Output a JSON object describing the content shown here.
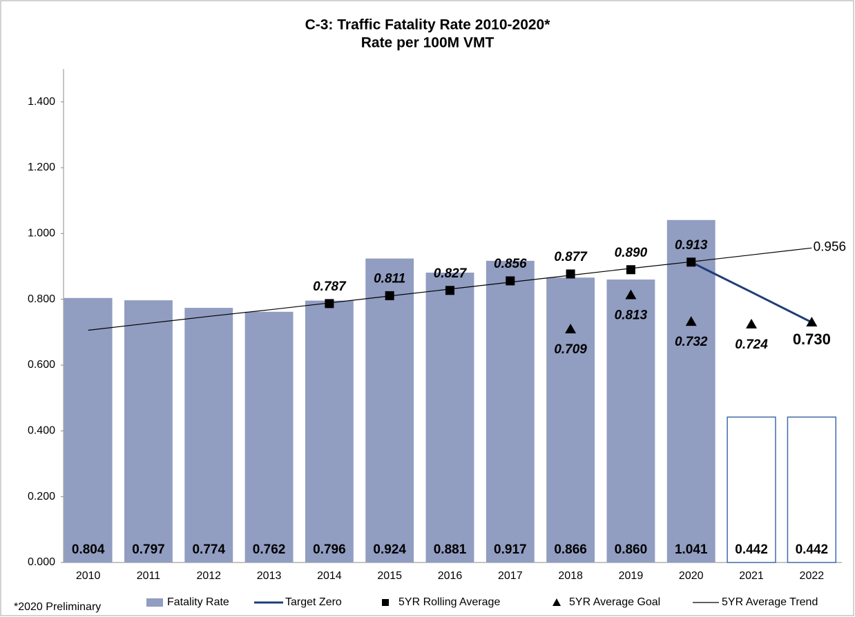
{
  "chart_data": {
    "type": "bar",
    "title": "C-3: Traffic Fatality Rate 2010-2020*",
    "subtitle": "Rate per 100M VMT",
    "note": "*2020 Preliminary",
    "categories": [
      "2010",
      "2011",
      "2012",
      "2013",
      "2014",
      "2015",
      "2016",
      "2017",
      "2018",
      "2019",
      "2020",
      "2021",
      "2022"
    ],
    "ylim": [
      0,
      1.5
    ],
    "yticks": [
      {
        "value": 0,
        "label": "0.000"
      },
      {
        "value": 0.2,
        "label": "0.200"
      },
      {
        "value": 0.4,
        "label": "0.400"
      },
      {
        "value": 0.6,
        "label": "0.600"
      },
      {
        "value": 0.8,
        "label": "0.800"
      },
      {
        "value": 1.0,
        "label": "1.000"
      },
      {
        "value": 1.2,
        "label": "1.200"
      },
      {
        "value": 1.4,
        "label": "1.400"
      }
    ],
    "series": [
      {
        "name": "Fatality Rate",
        "kind": "bar",
        "color": "#919dc1",
        "colors": [
          "#919dc1",
          "#919dc1",
          "#919dc1",
          "#919dc1",
          "#919dc1",
          "#919dc1",
          "#919dc1",
          "#919dc1",
          "#919dc1",
          "#919dc1",
          "#919dc1",
          "#ffffff",
          "#ffffff"
        ],
        "edgecolors": [
          "none",
          "none",
          "none",
          "none",
          "none",
          "none",
          "none",
          "none",
          "none",
          "none",
          "none",
          "#3d6aa8",
          "#3d6aa8"
        ],
        "values": [
          0.804,
          0.797,
          0.774,
          0.762,
          0.796,
          0.924,
          0.881,
          0.917,
          0.866,
          0.86,
          1.041,
          0.442,
          0.442
        ],
        "value_labels": [
          "0.804",
          "0.797",
          "0.774",
          "0.762",
          "0.796",
          "0.924",
          "0.881",
          "0.917",
          "0.866",
          "0.860",
          "1.041",
          "0.442",
          "0.442"
        ]
      },
      {
        "name": "Target Zero",
        "kind": "line",
        "color": "#1f3d78",
        "values": [
          null,
          null,
          null,
          null,
          null,
          null,
          null,
          null,
          null,
          null,
          0.913,
          0.822,
          0.73
        ]
      },
      {
        "name": "5YR Rolling Average",
        "kind": "square",
        "color": "#000000",
        "values": [
          null,
          null,
          null,
          null,
          0.787,
          0.811,
          0.827,
          0.856,
          0.877,
          0.89,
          0.913,
          null,
          null
        ],
        "value_labels": [
          null,
          null,
          null,
          null,
          "0.787",
          "0.811",
          "0.827",
          "0.856",
          "0.877",
          "0.890",
          "0.913",
          null,
          null
        ]
      },
      {
        "name": "5YR Average Goal",
        "kind": "triangle",
        "color": "#000000",
        "values": [
          null,
          null,
          null,
          null,
          null,
          null,
          null,
          null,
          0.709,
          0.813,
          0.732,
          0.724,
          0.73
        ],
        "value_labels": [
          null,
          null,
          null,
          null,
          null,
          null,
          null,
          null,
          "0.709",
          "0.813",
          "0.732",
          "0.724",
          "0.730"
        ]
      },
      {
        "name": "5YR Average Trend",
        "kind": "thinline",
        "color": "#000000",
        "values": [
          0.706,
          0.727,
          0.748,
          0.768,
          0.789,
          0.81,
          0.831,
          0.852,
          0.873,
          0.894,
          0.914,
          0.935,
          0.956
        ],
        "value_labels": [
          null,
          null,
          null,
          null,
          null,
          null,
          null,
          null,
          null,
          null,
          null,
          null,
          "0.956"
        ]
      }
    ]
  }
}
